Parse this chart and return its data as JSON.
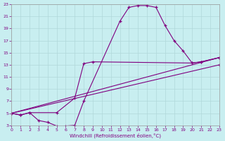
{
  "xlabel": "Windchill (Refroidissement éolien,°C)",
  "bg_color": "#c8eef0",
  "line_color": "#800080",
  "grid_color": "#b0d8da",
  "xlim": [
    0,
    23
  ],
  "ylim": [
    3,
    23
  ],
  "xticks": [
    0,
    1,
    2,
    3,
    4,
    5,
    6,
    7,
    8,
    9,
    10,
    11,
    12,
    13,
    14,
    15,
    16,
    17,
    18,
    19,
    20,
    21,
    22,
    23
  ],
  "yticks": [
    3,
    5,
    7,
    9,
    11,
    13,
    15,
    17,
    19,
    21,
    23
  ],
  "curves": [
    {
      "x": [
        0,
        1,
        2,
        3,
        4,
        5,
        6,
        7,
        8,
        12,
        13,
        14,
        15,
        16,
        17,
        18,
        19,
        20,
        21,
        23
      ],
      "y": [
        5,
        4.7,
        5.1,
        3.8,
        3.5,
        2.9,
        2.9,
        3.0,
        7.0,
        20.2,
        22.5,
        22.8,
        22.8,
        22.5,
        19.5,
        17.0,
        15.3,
        13.3,
        13.5,
        14.2
      ]
    },
    {
      "x": [
        0,
        1,
        2,
        5,
        7,
        8,
        9,
        20,
        21,
        23
      ],
      "y": [
        5,
        4.7,
        5.1,
        5.1,
        7.5,
        13.2,
        13.5,
        13.3,
        13.5,
        14.2
      ]
    },
    {
      "x": [
        0,
        23
      ],
      "y": [
        5,
        14.2
      ]
    },
    {
      "x": [
        0,
        23
      ],
      "y": [
        5,
        13.0
      ]
    }
  ]
}
